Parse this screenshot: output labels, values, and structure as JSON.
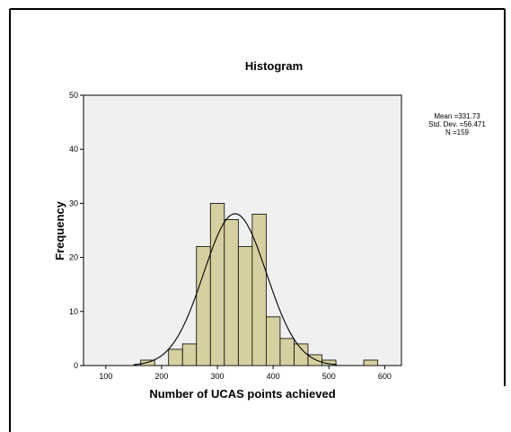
{
  "chart_data": {
    "type": "bar",
    "subtype": "histogram",
    "title": "Histogram",
    "xlabel": "Number of UCAS points achieved",
    "ylabel": "Frequency",
    "x_ticks": [
      "100",
      "200",
      "300",
      "400",
      "500",
      "600"
    ],
    "y_ticks": [
      "0",
      "10",
      "20",
      "30",
      "40",
      "50"
    ],
    "xlim": [
      60,
      630
    ],
    "ylim": [
      0,
      50
    ],
    "bin_width": 25,
    "bins": [
      {
        "start": 162.5,
        "count": 1
      },
      {
        "start": 212.5,
        "count": 3
      },
      {
        "start": 237.5,
        "count": 4
      },
      {
        "start": 262.5,
        "count": 22
      },
      {
        "start": 287.5,
        "count": 30
      },
      {
        "start": 312.5,
        "count": 27
      },
      {
        "start": 337.5,
        "count": 22
      },
      {
        "start": 362.5,
        "count": 28
      },
      {
        "start": 387.5,
        "count": 9
      },
      {
        "start": 412.5,
        "count": 5
      },
      {
        "start": 437.5,
        "count": 4
      },
      {
        "start": 462.5,
        "count": 2
      },
      {
        "start": 487.5,
        "count": 1
      },
      {
        "start": 562.5,
        "count": 1
      }
    ],
    "normal_curve": {
      "mean": 331.73,
      "sd": 56.471,
      "n": 159
    },
    "stats_text": [
      "Mean =331.73",
      "Std. Dev. =56.471",
      "N =159"
    ],
    "bar_color": "#d6d0a0",
    "plot_background": "#f0f0f0",
    "grid": false,
    "legend": "none"
  }
}
